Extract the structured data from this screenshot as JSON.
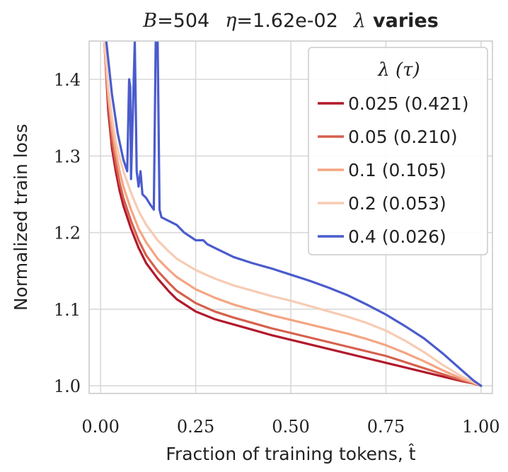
{
  "chart_data": {
    "type": "line",
    "title": {
      "b_label": "B",
      "b_value": "=504",
      "eta_label": "η",
      "eta_value": "=1.62e-02",
      "lambda_label": "λ",
      "lambda_value": "varies"
    },
    "xlabel": "Fraction of training tokens, t̂",
    "ylabel": "Normalized train loss",
    "xlim": [
      -0.03,
      1.03
    ],
    "ylim": [
      0.99,
      1.45
    ],
    "xticks": [
      0.0,
      0.25,
      0.5,
      0.75,
      1.0
    ],
    "xtick_labels": [
      "0.00",
      "0.25",
      "0.50",
      "0.75",
      "1.00"
    ],
    "yticks": [
      1.0,
      1.1,
      1.2,
      1.3,
      1.4
    ],
    "ytick_labels": [
      "1.0",
      "1.1",
      "1.2",
      "1.3",
      "1.4"
    ],
    "grid": true,
    "legend": {
      "title": "λ (τ)",
      "placement": "top-right"
    },
    "series": [
      {
        "name": "0.025 (0.421)",
        "color": "#b2182b",
        "x": [
          0.01,
          0.02,
          0.03,
          0.04,
          0.05,
          0.06,
          0.08,
          0.1,
          0.12,
          0.15,
          0.18,
          0.2,
          0.25,
          0.3,
          0.35,
          0.4,
          0.45,
          0.5,
          0.55,
          0.6,
          0.65,
          0.7,
          0.75,
          0.8,
          0.85,
          0.9,
          0.95,
          0.98,
          1.0
        ],
        "y": [
          1.45,
          1.36,
          1.31,
          1.28,
          1.255,
          1.235,
          1.205,
          1.18,
          1.16,
          1.14,
          1.123,
          1.113,
          1.097,
          1.087,
          1.08,
          1.073,
          1.066,
          1.06,
          1.054,
          1.048,
          1.042,
          1.036,
          1.03,
          1.024,
          1.018,
          1.012,
          1.006,
          1.003,
          1.0
        ]
      },
      {
        "name": "0.05 (0.210)",
        "color": "#d6604d",
        "x": [
          0.01,
          0.02,
          0.03,
          0.04,
          0.05,
          0.06,
          0.08,
          0.1,
          0.12,
          0.15,
          0.18,
          0.2,
          0.25,
          0.3,
          0.35,
          0.4,
          0.45,
          0.5,
          0.55,
          0.6,
          0.65,
          0.7,
          0.75,
          0.8,
          0.85,
          0.9,
          0.95,
          0.98,
          1.0
        ],
        "y": [
          1.45,
          1.37,
          1.32,
          1.29,
          1.265,
          1.245,
          1.215,
          1.19,
          1.17,
          1.15,
          1.134,
          1.124,
          1.108,
          1.097,
          1.089,
          1.082,
          1.075,
          1.069,
          1.063,
          1.057,
          1.051,
          1.045,
          1.039,
          1.031,
          1.023,
          1.015,
          1.007,
          1.003,
          1.0
        ]
      },
      {
        "name": "0.1 (0.105)",
        "color": "#f4a582",
        "x": [
          0.01,
          0.02,
          0.03,
          0.04,
          0.05,
          0.06,
          0.08,
          0.1,
          0.12,
          0.15,
          0.18,
          0.2,
          0.25,
          0.3,
          0.35,
          0.4,
          0.45,
          0.5,
          0.55,
          0.6,
          0.65,
          0.7,
          0.75,
          0.8,
          0.85,
          0.9,
          0.95,
          0.98,
          1.0
        ],
        "y": [
          1.45,
          1.38,
          1.335,
          1.305,
          1.28,
          1.26,
          1.23,
          1.205,
          1.187,
          1.166,
          1.151,
          1.142,
          1.126,
          1.115,
          1.106,
          1.099,
          1.092,
          1.086,
          1.08,
          1.074,
          1.068,
          1.061,
          1.053,
          1.043,
          1.032,
          1.02,
          1.009,
          1.004,
          1.0
        ]
      },
      {
        "name": "0.2 (0.053)",
        "color": "#f7cbb4",
        "x": [
          0.01,
          0.02,
          0.03,
          0.04,
          0.05,
          0.06,
          0.08,
          0.1,
          0.12,
          0.15,
          0.18,
          0.2,
          0.25,
          0.3,
          0.35,
          0.4,
          0.45,
          0.5,
          0.55,
          0.6,
          0.65,
          0.7,
          0.75,
          0.8,
          0.85,
          0.9,
          0.95,
          0.98,
          1.0
        ],
        "y": [
          1.45,
          1.39,
          1.35,
          1.32,
          1.298,
          1.28,
          1.252,
          1.228,
          1.21,
          1.19,
          1.175,
          1.166,
          1.151,
          1.14,
          1.131,
          1.124,
          1.117,
          1.111,
          1.104,
          1.097,
          1.09,
          1.082,
          1.072,
          1.059,
          1.044,
          1.027,
          1.012,
          1.005,
          1.0
        ]
      },
      {
        "name": "0.4 (0.026)",
        "color": "#4a5ccc",
        "x": [
          0.015,
          0.03,
          0.045,
          0.06,
          0.07,
          0.075,
          0.078,
          0.08,
          0.09,
          0.095,
          0.1,
          0.105,
          0.11,
          0.12,
          0.13,
          0.14,
          0.145,
          0.15,
          0.155,
          0.16,
          0.18,
          0.2,
          0.22,
          0.25,
          0.27,
          0.28,
          0.3,
          0.35,
          0.4,
          0.45,
          0.5,
          0.55,
          0.6,
          0.65,
          0.7,
          0.75,
          0.8,
          0.85,
          0.9,
          0.95,
          0.98,
          1.0
        ],
        "y": [
          1.45,
          1.38,
          1.33,
          1.295,
          1.28,
          1.4,
          1.39,
          1.27,
          1.45,
          1.28,
          1.26,
          1.28,
          1.25,
          1.245,
          1.237,
          1.23,
          1.45,
          1.45,
          1.23,
          1.22,
          1.215,
          1.21,
          1.2,
          1.19,
          1.19,
          1.185,
          1.18,
          1.168,
          1.16,
          1.153,
          1.145,
          1.137,
          1.128,
          1.118,
          1.106,
          1.093,
          1.078,
          1.062,
          1.042,
          1.02,
          1.007,
          1.0
        ]
      }
    ]
  }
}
